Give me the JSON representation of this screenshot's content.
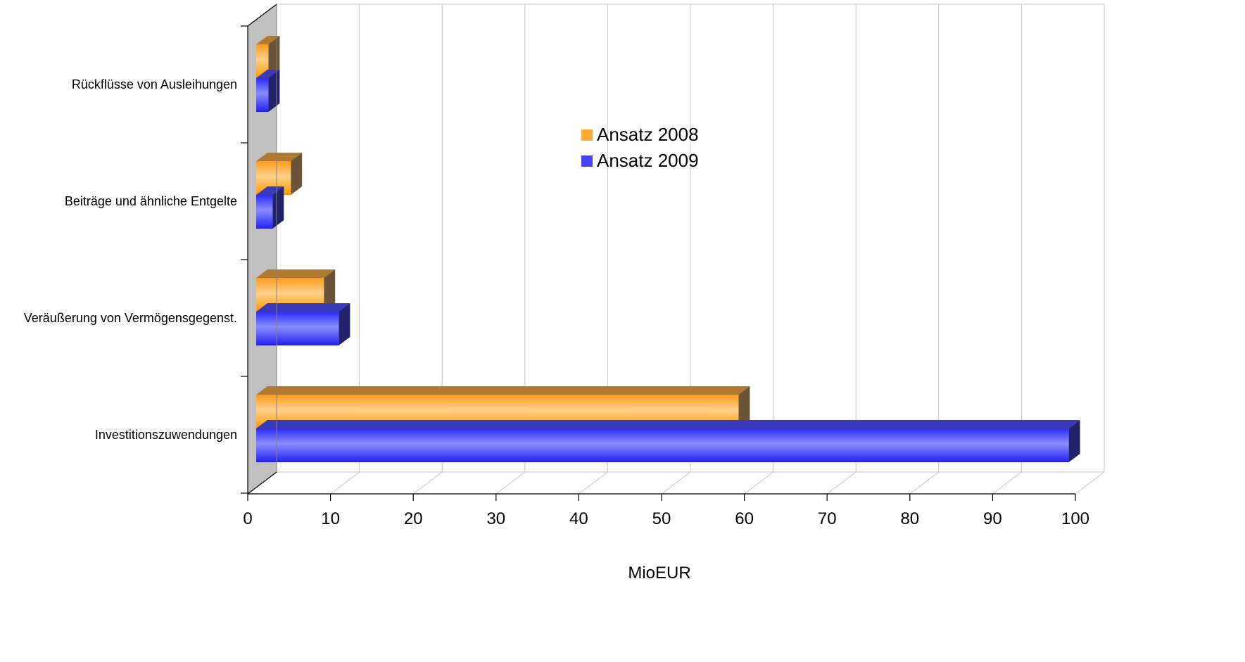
{
  "chart_data": {
    "type": "bar",
    "orientation": "horizontal",
    "style": "3d",
    "title": "",
    "xlabel": "MioEUR",
    "ylabel": "",
    "xlim": [
      0,
      100
    ],
    "xticks": [
      0,
      10,
      20,
      30,
      40,
      50,
      60,
      70,
      80,
      90,
      100
    ],
    "grid": true,
    "legend_position": "center-right inside plot",
    "categories": [
      "Rückflüsse von Ausleihungen",
      "Beiträge und ähnliche Entgelte",
      "Veräußerung von Vermögensgegenst.",
      "Investitionszuwendungen"
    ],
    "series": [
      {
        "name": "Ansatz 2008",
        "color": "#ff9900",
        "values": [
          2.5,
          5.2,
          9.2,
          59.3
        ]
      },
      {
        "name": "Ansatz 2009",
        "color": "#3333ff",
        "values": [
          2.5,
          3.0,
          11.0,
          99.2
        ]
      }
    ]
  }
}
